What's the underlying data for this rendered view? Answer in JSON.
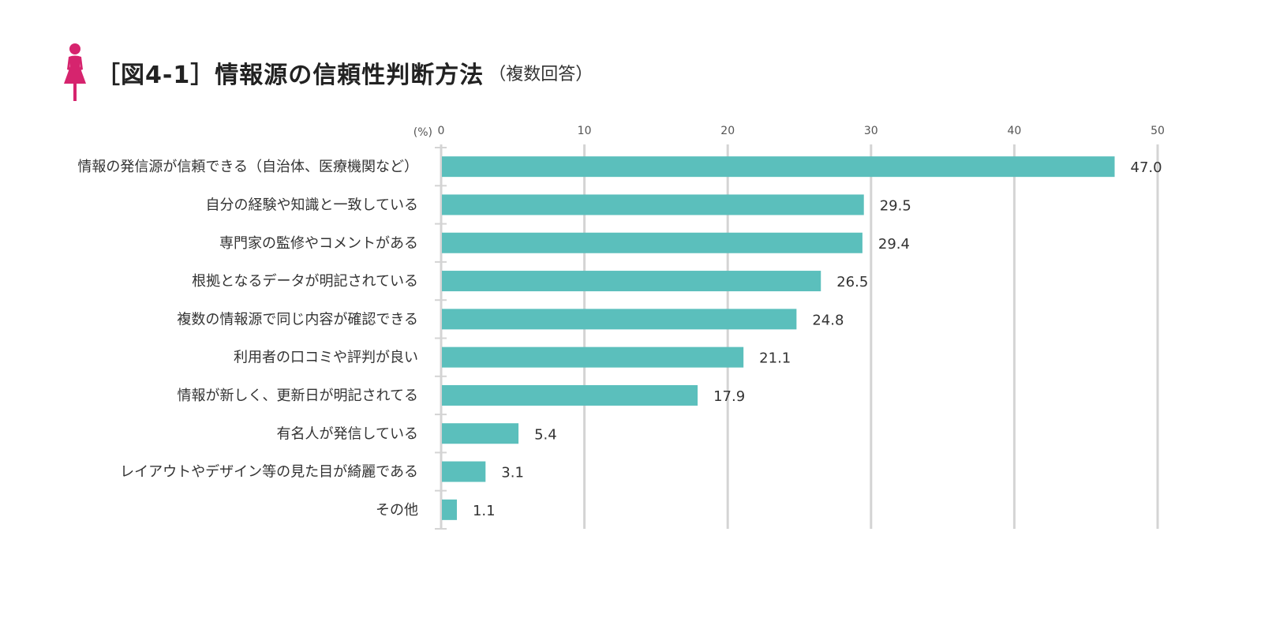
{
  "title": {
    "main": "［図4-1］情報源の信頼性判断方法",
    "sub": "（複数回答）",
    "icon": "woman-icon"
  },
  "colors": {
    "bar": "#5bbfbc",
    "icon": "#d6246e",
    "grid": "#d4d4d4"
  },
  "chart_data": {
    "type": "bar",
    "orientation": "horizontal",
    "title": "［図4-1］情報源の信頼性判断方法（複数回答）",
    "unit_label": "(%)",
    "xlim": [
      0,
      50
    ],
    "ticks": [
      0,
      10,
      20,
      30,
      40,
      50
    ],
    "grid": true,
    "categories": [
      "情報の発信源が信頼できる（自治体、医療機関など）",
      "自分の経験や知識と一致している",
      "専門家の監修やコメントがある",
      "根拠となるデータが明記されている",
      "複数の情報源で同じ内容が確認できる",
      "利用者の口コミや評判が良い",
      "情報が新しく、更新日が明記されてる",
      "有名人が発信している",
      "レイアウトやデザイン等の見た目が綺麗である",
      "その他"
    ],
    "values": [
      47.0,
      29.5,
      29.4,
      26.5,
      24.8,
      21.1,
      17.9,
      5.4,
      3.1,
      1.1
    ],
    "value_labels": [
      "47.0",
      "29.5",
      "29.4",
      "26.5",
      "24.8",
      "21.1",
      "17.9",
      "5.4",
      "3.1",
      "1.1"
    ]
  }
}
